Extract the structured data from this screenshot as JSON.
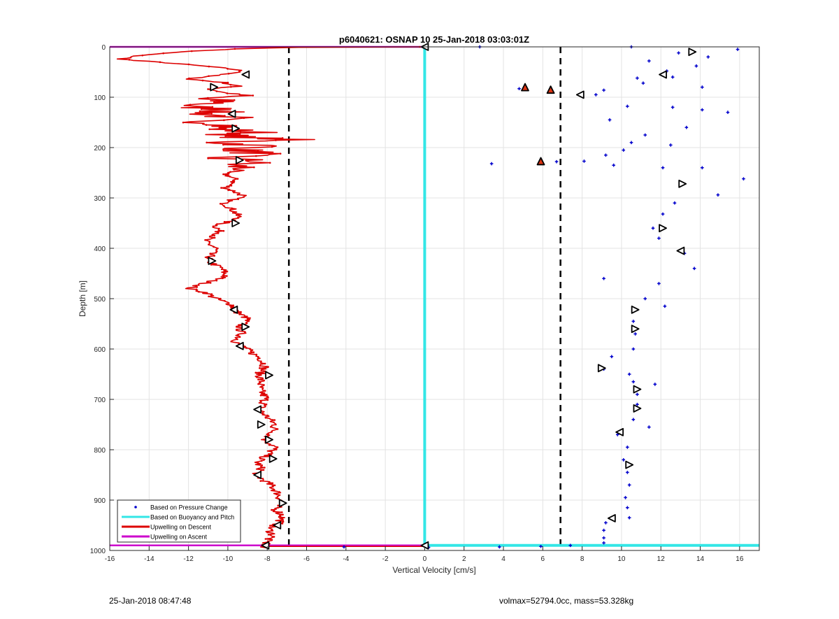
{
  "chart_data": {
    "type": "scatter",
    "title": "p6040621: OSNAP 10 25-Jan-2018 03:03:01Z",
    "xlabel": "Vertical Velocity [cm/s]",
    "ylabel": "Depth [m]",
    "xlim": [
      -16,
      17
    ],
    "ylim": [
      0,
      1000
    ],
    "y_reversed": true,
    "grid": true,
    "legend_position": "bottom-left",
    "x_ticks": [
      -16,
      -14,
      -12,
      -10,
      -8,
      -6,
      -4,
      -2,
      0,
      2,
      4,
      6,
      8,
      10,
      12,
      14,
      16
    ],
    "y_ticks": [
      0,
      100,
      200,
      300,
      400,
      500,
      600,
      700,
      800,
      900,
      1000
    ],
    "legend": [
      {
        "label": "Based on Pressure Change",
        "color": "#0000cc",
        "style": "dot"
      },
      {
        "label": "Based on Buoyancy and Pitch",
        "color": "#33e6e6",
        "style": "line"
      },
      {
        "label": "Upwelling on Descent",
        "color": "#dd0000",
        "style": "line"
      },
      {
        "label": "Upwelling on Ascent",
        "color": "#cc00cc",
        "style": "line"
      }
    ],
    "threshold_lines_x": [
      -6.9,
      6.9
    ],
    "buoyancy_pitch": {
      "descent": [
        [
          0,
          0
        ],
        [
          0,
          990
        ]
      ],
      "bottom": [
        [
          0,
          990
        ],
        [
          17,
          990
        ]
      ],
      "ascent": [
        [
          0,
          0
        ],
        [
          0,
          990
        ]
      ]
    },
    "upwelling_ascent": [
      [
        -16,
        0
      ],
      [
        0,
        0
      ],
      [
        -16,
        990
      ],
      [
        0,
        990
      ]
    ],
    "upwelling_descent": [
      [
        0,
        0
      ],
      [
        -6.6,
        1
      ],
      [
        -9.5,
        4
      ],
      [
        -12.5,
        10
      ],
      [
        -14.5,
        17
      ],
      [
        -15.4,
        24
      ],
      [
        -14.8,
        27
      ],
      [
        -13,
        32
      ],
      [
        -11,
        39
      ],
      [
        -9.6,
        45
      ],
      [
        -9.2,
        50
      ],
      [
        -11,
        58
      ],
      [
        -12,
        64
      ],
      [
        -10.2,
        71
      ],
      [
        -9.5,
        78
      ],
      [
        -10.9,
        84
      ],
      [
        -10.2,
        91
      ],
      [
        -9.3,
        95
      ],
      [
        -11.5,
        103
      ],
      [
        -10,
        110
      ],
      [
        -12.4,
        118
      ],
      [
        -9.6,
        125
      ],
      [
        -11.2,
        132
      ],
      [
        -9.9,
        140
      ],
      [
        -11.7,
        147
      ],
      [
        -9.7,
        155
      ],
      [
        -10.6,
        162
      ],
      [
        -8.6,
        170
      ],
      [
        -10.5,
        177
      ],
      [
        -6.9,
        184
      ],
      [
        -10.3,
        190
      ],
      [
        -8.1,
        197
      ],
      [
        -9.4,
        205
      ],
      [
        -8.4,
        212
      ],
      [
        -10.8,
        220
      ],
      [
        -8.3,
        227
      ],
      [
        -9.9,
        235
      ],
      [
        -8.9,
        242
      ],
      [
        -10.2,
        250
      ],
      [
        -9.6,
        265
      ],
      [
        -10.1,
        280
      ],
      [
        -9.2,
        295
      ],
      [
        -10.2,
        310
      ],
      [
        -9.7,
        325
      ],
      [
        -9.4,
        340
      ],
      [
        -10.6,
        355
      ],
      [
        -10.4,
        370
      ],
      [
        -11.2,
        385
      ],
      [
        -10.6,
        400
      ],
      [
        -10.9,
        412
      ],
      [
        -11,
        425
      ],
      [
        -10.3,
        440
      ],
      [
        -10.1,
        455
      ],
      [
        -11.2,
        470
      ],
      [
        -12,
        480
      ],
      [
        -11.1,
        488
      ],
      [
        -10.6,
        500
      ],
      [
        -9.8,
        512
      ],
      [
        -9.6,
        525
      ],
      [
        -9,
        540
      ],
      [
        -9.4,
        555
      ],
      [
        -9.3,
        570
      ],
      [
        -9.6,
        585
      ],
      [
        -9.2,
        595
      ],
      [
        -8.9,
        605
      ],
      [
        -8.3,
        620
      ],
      [
        -8.1,
        635
      ],
      [
        -8.4,
        650
      ],
      [
        -8.3,
        665
      ],
      [
        -8.4,
        680
      ],
      [
        -8.1,
        695
      ],
      [
        -8.2,
        710
      ],
      [
        -8.4,
        720
      ],
      [
        -8,
        735
      ],
      [
        -7.6,
        750
      ],
      [
        -7.7,
        765
      ],
      [
        -8.1,
        780
      ],
      [
        -7.6,
        795
      ],
      [
        -8,
        810
      ],
      [
        -8.5,
        825
      ],
      [
        -8.3,
        840
      ],
      [
        -8.6,
        850
      ],
      [
        -8.1,
        862
      ],
      [
        -7.7,
        875
      ],
      [
        -7.4,
        890
      ],
      [
        -7.3,
        905
      ],
      [
        -7.6,
        918
      ],
      [
        -7.2,
        932
      ],
      [
        -7.4,
        945
      ],
      [
        -7.9,
        958
      ],
      [
        -7.7,
        970
      ],
      [
        -8,
        980
      ],
      [
        -8.1,
        988
      ],
      [
        -8.3,
        993
      ],
      [
        -8,
        995
      ]
    ],
    "upwelling_descent_noise_depths": [
      95,
      195
    ],
    "pressure_change_points": [
      [
        2.8,
        0
      ],
      [
        10.5,
        0
      ],
      [
        15.9,
        5
      ],
      [
        12.9,
        12
      ],
      [
        14.4,
        20
      ],
      [
        11.4,
        28
      ],
      [
        13.8,
        38
      ],
      [
        12.3,
        48
      ],
      [
        10.8,
        62
      ],
      [
        12.6,
        60
      ],
      [
        11.1,
        72
      ],
      [
        9.1,
        86
      ],
      [
        14.1,
        80
      ],
      [
        8.7,
        95
      ],
      [
        4.8,
        83
      ],
      [
        6.4,
        87
      ],
      [
        10.3,
        118
      ],
      [
        12.6,
        120
      ],
      [
        14.1,
        125
      ],
      [
        15.4,
        130
      ],
      [
        9.4,
        145
      ],
      [
        13.3,
        160
      ],
      [
        11.2,
        175
      ],
      [
        10.5,
        190
      ],
      [
        12.5,
        195
      ],
      [
        10.1,
        205
      ],
      [
        9.2,
        215
      ],
      [
        8.1,
        227
      ],
      [
        3.4,
        232
      ],
      [
        6.7,
        228
      ],
      [
        9.6,
        235
      ],
      [
        12.1,
        240
      ],
      [
        14.1,
        240
      ],
      [
        16.2,
        262
      ],
      [
        13.1,
        272
      ],
      [
        14.9,
        294
      ],
      [
        12.7,
        310
      ],
      [
        12.1,
        332
      ],
      [
        11.6,
        360
      ],
      [
        11.9,
        380
      ],
      [
        13.2,
        410
      ],
      [
        13.7,
        440
      ],
      [
        9.1,
        460
      ],
      [
        11.9,
        470
      ],
      [
        11.2,
        500
      ],
      [
        10.6,
        520
      ],
      [
        12.2,
        515
      ],
      [
        10.6,
        545
      ],
      [
        10.7,
        570
      ],
      [
        10.6,
        600
      ],
      [
        9.5,
        615
      ],
      [
        9.1,
        640
      ],
      [
        10.4,
        650
      ],
      [
        10.6,
        665
      ],
      [
        11.7,
        670
      ],
      [
        10.8,
        690
      ],
      [
        10.8,
        710
      ],
      [
        10.6,
        740
      ],
      [
        11.4,
        755
      ],
      [
        9.8,
        770
      ],
      [
        10.3,
        795
      ],
      [
        10.1,
        820
      ],
      [
        10.3,
        845
      ],
      [
        10.4,
        870
      ],
      [
        10.2,
        895
      ],
      [
        10.3,
        915
      ],
      [
        10.4,
        935
      ],
      [
        9.2,
        945
      ],
      [
        9.1,
        960
      ],
      [
        9.1,
        975
      ],
      [
        9.1,
        985
      ],
      [
        0.2,
        994
      ],
      [
        3.8,
        993
      ],
      [
        5.9,
        992
      ],
      [
        7.4,
        990
      ],
      [
        -4.1,
        993
      ]
    ],
    "markers": [
      {
        "x": 0,
        "y": 0,
        "dir": "left",
        "filled": false
      },
      {
        "x": -9.1,
        "y": 55,
        "dir": "left",
        "filled": false
      },
      {
        "x": -10.7,
        "y": 80,
        "dir": "right",
        "filled": false
      },
      {
        "x": -9.8,
        "y": 133,
        "dir": "left",
        "filled": false
      },
      {
        "x": -9.6,
        "y": 162,
        "dir": "right",
        "filled": false
      },
      {
        "x": -9.4,
        "y": 225,
        "dir": "right",
        "filled": false
      },
      {
        "x": -9.6,
        "y": 350,
        "dir": "right",
        "filled": false
      },
      {
        "x": -10.8,
        "y": 425,
        "dir": "right",
        "filled": false
      },
      {
        "x": -9.7,
        "y": 522,
        "dir": "left",
        "filled": false
      },
      {
        "x": -9.1,
        "y": 556,
        "dir": "right",
        "filled": false
      },
      {
        "x": -9.4,
        "y": 594,
        "dir": "left",
        "filled": false
      },
      {
        "x": -7.9,
        "y": 652,
        "dir": "right",
        "filled": false
      },
      {
        "x": -8.5,
        "y": 720,
        "dir": "left",
        "filled": false
      },
      {
        "x": -8.3,
        "y": 750,
        "dir": "right",
        "filled": false
      },
      {
        "x": -7.9,
        "y": 780,
        "dir": "right",
        "filled": false
      },
      {
        "x": -7.7,
        "y": 818,
        "dir": "right",
        "filled": false
      },
      {
        "x": -8.5,
        "y": 850,
        "dir": "left",
        "filled": false
      },
      {
        "x": -7.2,
        "y": 906,
        "dir": "right",
        "filled": false
      },
      {
        "x": -7.5,
        "y": 950,
        "dir": "left",
        "filled": false
      },
      {
        "x": -8.1,
        "y": 990,
        "dir": "left",
        "filled": false
      },
      {
        "x": 0,
        "y": 990,
        "dir": "left",
        "filled": false
      },
      {
        "x": 13.6,
        "y": 10,
        "dir": "right",
        "filled": false
      },
      {
        "x": 12.1,
        "y": 55,
        "dir": "left",
        "filled": false
      },
      {
        "x": 5.1,
        "y": 80,
        "dir": "up",
        "filled": true
      },
      {
        "x": 6.4,
        "y": 85,
        "dir": "up",
        "filled": true
      },
      {
        "x": 7.9,
        "y": 95,
        "dir": "left",
        "filled": false
      },
      {
        "x": 5.9,
        "y": 227,
        "dir": "up",
        "filled": true
      },
      {
        "x": 13.1,
        "y": 272,
        "dir": "right",
        "filled": false
      },
      {
        "x": 12.1,
        "y": 360,
        "dir": "right",
        "filled": false
      },
      {
        "x": 13,
        "y": 405,
        "dir": "left",
        "filled": false
      },
      {
        "x": 10.7,
        "y": 522,
        "dir": "right",
        "filled": false
      },
      {
        "x": 10.7,
        "y": 560,
        "dir": "right",
        "filled": false
      },
      {
        "x": 9,
        "y": 638,
        "dir": "right",
        "filled": false
      },
      {
        "x": 10.8,
        "y": 680,
        "dir": "right",
        "filled": false
      },
      {
        "x": 10.8,
        "y": 718,
        "dir": "right",
        "filled": false
      },
      {
        "x": 9.9,
        "y": 765,
        "dir": "left",
        "filled": false
      },
      {
        "x": 10.4,
        "y": 830,
        "dir": "right",
        "filled": false
      },
      {
        "x": 9.5,
        "y": 936,
        "dir": "left",
        "filled": false
      }
    ]
  },
  "footer": {
    "left": "25-Jan-2018 08:47:48",
    "right": "volmax=52794.0cc, mass=53.328kg"
  }
}
